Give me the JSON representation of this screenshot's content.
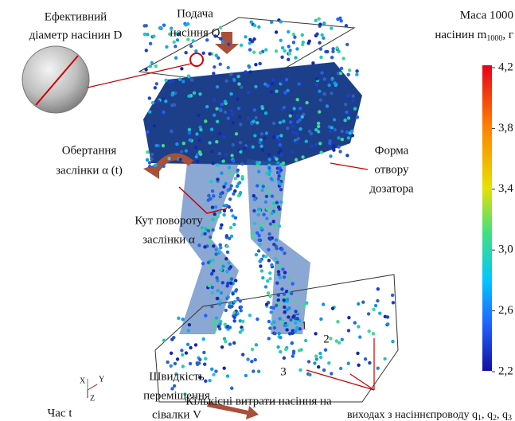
{
  "labels": {
    "diameter": [
      "Ефективний",
      "діаметр насінин D"
    ],
    "feed": [
      "Подача",
      "насіння Q"
    ],
    "rotation": [
      "Обертання",
      "заслінки α (t)"
    ],
    "shape": [
      "Форма",
      "отвору",
      "дозатора"
    ],
    "angle": [
      "Кут повороту",
      "заслінки α"
    ],
    "speed": [
      "Швидкість",
      "переміщення",
      "сівалки V"
    ],
    "flow": {
      "line1": "Кількісні витрати насіння на",
      "line2": "виходах з насіннєпроводу q",
      "q1": "1",
      "sep1": ", q",
      "q2": "2",
      "sep2": ", q",
      "q3": "3"
    },
    "time": "Час t",
    "axes": [
      "X",
      "Y",
      "Z"
    ],
    "outlets": [
      "1",
      "2",
      "3"
    ]
  },
  "colorbar": {
    "title1": "Маса 1000",
    "title2": "насінин m",
    "sub": "1000",
    "unit": ", г",
    "ticks": [
      "4,2",
      "3,8",
      "3,4",
      "3,0",
      "2,6",
      "2,2"
    ]
  }
}
